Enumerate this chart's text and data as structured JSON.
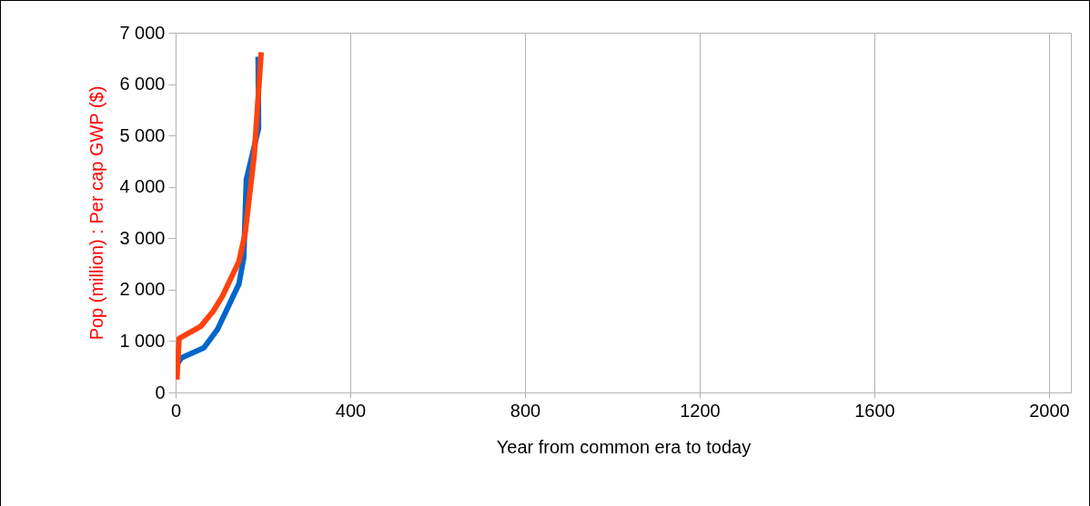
{
  "chart_data": {
    "type": "line",
    "xlabel": "Year from common era to today",
    "ylabel": "Pop (million) : Per cap GWP ($)",
    "xlim": [
      0,
      2050
    ],
    "xticks": [
      0,
      400,
      800,
      1200,
      1600,
      2000
    ],
    "ylim": [
      0,
      7000
    ],
    "yticks": [
      0,
      {
        "value": 1000,
        "label": "1 000"
      },
      {
        "value": 2000,
        "label": "2 000"
      },
      {
        "value": 3000,
        "label": "3 000"
      },
      {
        "value": 4000,
        "label": "4 000"
      },
      {
        "value": 5000,
        "label": "5 000"
      },
      {
        "value": 6000,
        "label": "6 000"
      },
      {
        "value": 7000,
        "label": "7 000"
      }
    ],
    "grid": "x",
    "marker": "none",
    "line_style": "solid",
    "series": [
      {
        "color": "#0066cc",
        "x": [
          0,
          13,
          65,
          96,
          145,
          156,
          162,
          190,
          189
        ],
        "values": [
          500,
          670,
          870,
          1230,
          2110,
          2620,
          4140,
          5140,
          6530
        ]
      },
      {
        "color": "#ff420e",
        "x": [
          3,
          8,
          58,
          86,
          107,
          145,
          159,
          180,
          196
        ],
        "values": [
          250,
          1050,
          1290,
          1580,
          1870,
          2550,
          3080,
          4610,
          6620
        ]
      }
    ]
  }
}
